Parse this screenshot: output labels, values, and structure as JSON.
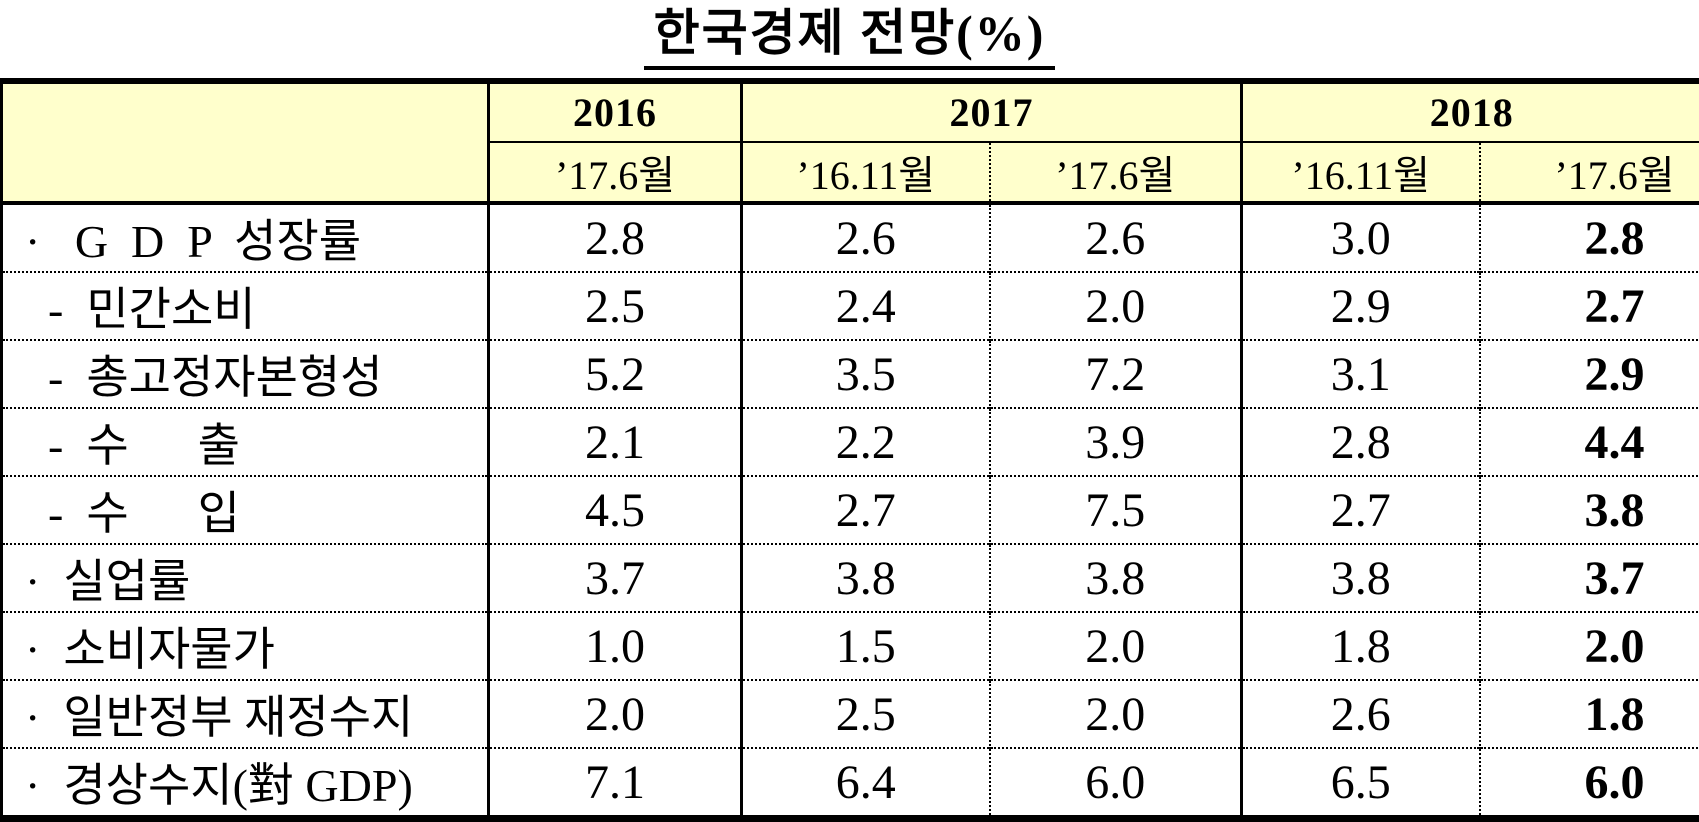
{
  "title": "한국경제 전망(%)",
  "colors": {
    "header_bg": "#FFFFCC",
    "border": "#000000",
    "text": "#000000"
  },
  "chart_data": {
    "type": "table",
    "title": "한국경제 전망(%)",
    "unit": "%",
    "column_groups": [
      {
        "label": "2016",
        "sub": [
          "’17.6월"
        ]
      },
      {
        "label": "2017",
        "sub": [
          "’16.11월",
          "’17.6월"
        ]
      },
      {
        "label": "2018",
        "sub": [
          "’16.11월",
          "’17.6월"
        ]
      }
    ],
    "rows": [
      {
        "label": "·   G  D  P  성장률",
        "values": [
          "2.8",
          "2.6",
          "2.6",
          "3.0",
          "2.8"
        ]
      },
      {
        "label": "  -  민간소비",
        "values": [
          "2.5",
          "2.4",
          "2.0",
          "2.9",
          "2.7"
        ]
      },
      {
        "label": "  -  총고정자본형성",
        "values": [
          "5.2",
          "3.5",
          "7.2",
          "3.1",
          "2.9"
        ]
      },
      {
        "label": "  -  수      출",
        "values": [
          "2.1",
          "2.2",
          "3.9",
          "2.8",
          "4.4"
        ]
      },
      {
        "label": "  -  수      입",
        "values": [
          "4.5",
          "2.7",
          "7.5",
          "2.7",
          "3.8"
        ]
      },
      {
        "label": "·  실업률",
        "values": [
          "3.7",
          "3.8",
          "3.8",
          "3.8",
          "3.7"
        ]
      },
      {
        "label": "·  소비자물가",
        "values": [
          "1.0",
          "1.5",
          "2.0",
          "1.8",
          "2.0"
        ]
      },
      {
        "label": "·  일반정부 재정수지",
        "values": [
          "2.0",
          "2.5",
          "2.0",
          "2.6",
          "1.8"
        ]
      },
      {
        "label": "·  경상수지(對 GDP)",
        "values": [
          "7.1",
          "6.4",
          "6.0",
          "6.5",
          "6.0"
        ]
      }
    ]
  }
}
